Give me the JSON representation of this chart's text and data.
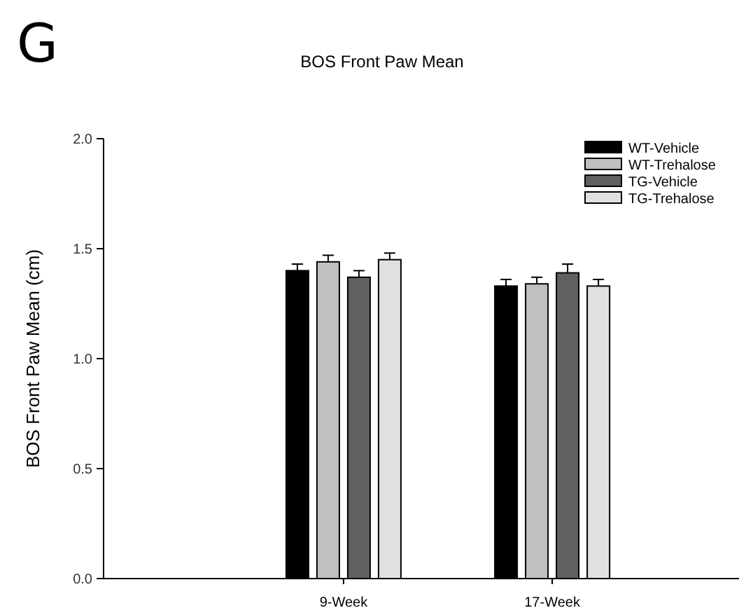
{
  "chart_data": {
    "type": "bar",
    "title": "BOS Front Paw Mean",
    "ylabel": "BOS Front Paw Mean (cm)",
    "annotations": [
      "G"
    ],
    "categories": [
      "9-Week",
      "17-Week"
    ],
    "series": [
      {
        "name": "WT-Vehicle",
        "color": "#000000",
        "values": [
          1.4,
          1.33
        ],
        "errors": [
          0.03,
          0.03
        ]
      },
      {
        "name": "WT-Trehalose",
        "color": "#c0c0c0",
        "values": [
          1.44,
          1.34
        ],
        "errors": [
          0.03,
          0.03
        ]
      },
      {
        "name": "TG-Vehicle",
        "color": "#606060",
        "values": [
          1.37,
          1.39
        ],
        "errors": [
          0.03,
          0.04
        ]
      },
      {
        "name": "TG-Trehalose",
        "color": "#e0e0e0",
        "values": [
          1.45,
          1.33
        ],
        "errors": [
          0.03,
          0.03
        ]
      }
    ],
    "ylim": [
      0,
      2
    ],
    "yticks": [
      {
        "value": 0,
        "label": "0.0"
      },
      {
        "value": 0.5,
        "label": "0.5"
      },
      {
        "value": 1,
        "label": "1.0"
      },
      {
        "value": 1.5,
        "label": "1.5"
      },
      {
        "value": 2,
        "label": "2.0"
      }
    ],
    "grid": false,
    "legend": "top right"
  }
}
